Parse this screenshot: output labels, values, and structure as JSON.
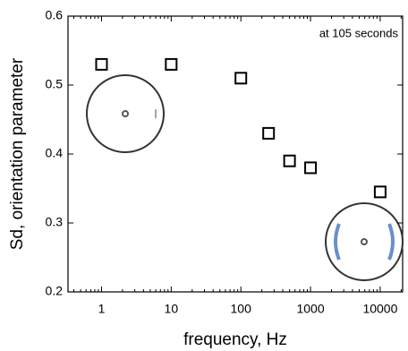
{
  "chart_data": {
    "type": "scatter",
    "x_label": "frequency, Hz",
    "y_label": "Sd, orientation parameter",
    "annotation": "at 105 seconds",
    "x": [
      1,
      10,
      100,
      250,
      500,
      1000,
      10000
    ],
    "series": [
      {
        "color": "#000000",
        "values": [
          0.53,
          0.53,
          0.51,
          0.43,
          0.39,
          0.38,
          0.345
        ]
      }
    ],
    "xscale": "log",
    "xlim": [
      0.33,
      21000
    ],
    "xticks": [
      1,
      10,
      100,
      1000,
      10000
    ],
    "ylim": [
      0.2,
      0.6
    ],
    "yticks": [
      0.2,
      0.3,
      0.4,
      0.5,
      0.6
    ]
  }
}
